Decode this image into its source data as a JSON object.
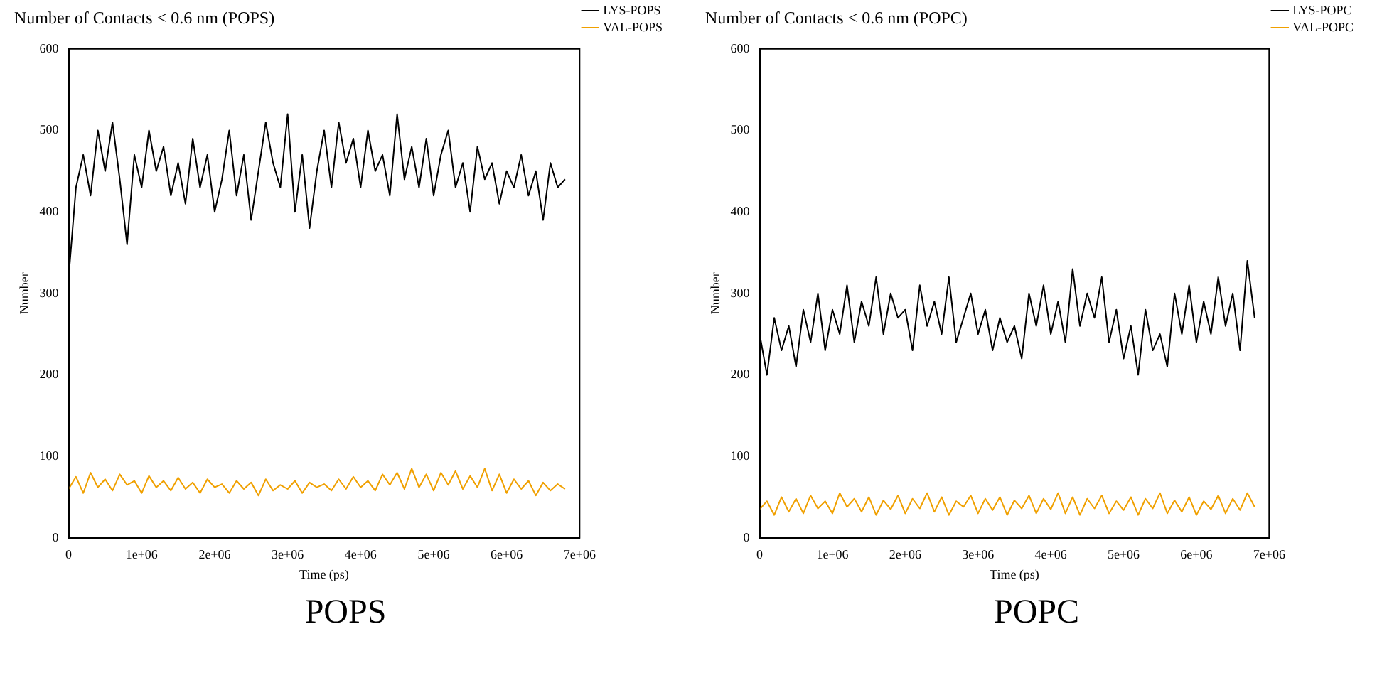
{
  "chart_data": [
    {
      "type": "line",
      "title": "Number of Contacts < 0.6 nm (POPS)",
      "xlabel": "Time (ps)",
      "ylabel": "Number",
      "annotations": [
        "POPS"
      ],
      "legend": "right",
      "grid": false,
      "marker": "none",
      "line_style": "solid",
      "x": [
        0,
        100000,
        200000,
        300000,
        400000,
        500000,
        600000,
        700000,
        800000,
        900000,
        1000000,
        1100000,
        1200000,
        1300000,
        1400000,
        1500000,
        1600000,
        1700000,
        1800000,
        1900000,
        2000000,
        2100000,
        2200000,
        2300000,
        2400000,
        2500000,
        2600000,
        2700000,
        2800000,
        2900000,
        3000000,
        3100000,
        3200000,
        3300000,
        3400000,
        3500000,
        3600000,
        3700000,
        3800000,
        3900000,
        4000000,
        4100000,
        4200000,
        4300000,
        4400000,
        4500000,
        4600000,
        4700000,
        4800000,
        4900000,
        5000000,
        5100000,
        5200000,
        5300000,
        5400000,
        5500000,
        5600000,
        5700000,
        5800000,
        5900000,
        6000000,
        6100000,
        6200000,
        6300000,
        6400000,
        6500000,
        6600000,
        6700000,
        6800000
      ],
      "xlim": [
        0,
        7000000
      ],
      "xticks": [
        0,
        {
          "value": 1000000,
          "label": "1e+06"
        },
        {
          "value": 2000000,
          "label": "2e+06"
        },
        {
          "value": 3000000,
          "label": "3e+06"
        },
        {
          "value": 4000000,
          "label": "4e+06"
        },
        {
          "value": 5000000,
          "label": "5e+06"
        },
        {
          "value": 6000000,
          "label": "6e+06"
        },
        {
          "value": 7000000,
          "label": "7e+06"
        }
      ],
      "ylim": [
        0,
        600
      ],
      "yticks": [
        0,
        100,
        200,
        300,
        400,
        500,
        600
      ],
      "series": [
        {
          "name": "LYS-POPS",
          "color": "#000000",
          "values": [
            320,
            430,
            470,
            420,
            500,
            450,
            510,
            440,
            360,
            470,
            430,
            500,
            450,
            480,
            420,
            460,
            410,
            490,
            430,
            470,
            400,
            440,
            500,
            420,
            470,
            390,
            450,
            510,
            460,
            430,
            520,
            400,
            470,
            380,
            450,
            500,
            430,
            510,
            460,
            490,
            430,
            500,
            450,
            470,
            420,
            520,
            440,
            480,
            430,
            490,
            420,
            470,
            500,
            430,
            460,
            400,
            480,
            440,
            460,
            410,
            450,
            430,
            470,
            420,
            450,
            390,
            460,
            430,
            440
          ]
        },
        {
          "name": "VAL-POPS",
          "color": "#f0a000",
          "values": [
            60,
            75,
            55,
            80,
            62,
            72,
            58,
            78,
            65,
            70,
            55,
            76,
            62,
            70,
            58,
            74,
            60,
            68,
            55,
            72,
            62,
            66,
            55,
            70,
            60,
            68,
            52,
            72,
            58,
            65,
            60,
            70,
            55,
            68,
            62,
            66,
            58,
            72,
            60,
            75,
            62,
            70,
            58,
            78,
            65,
            80,
            60,
            85,
            62,
            78,
            58,
            80,
            65,
            82,
            60,
            76,
            62,
            85,
            58,
            78,
            55,
            72,
            60,
            70,
            52,
            68,
            58,
            66,
            60
          ]
        }
      ]
    },
    {
      "type": "line",
      "title": "Number of Contacts < 0.6 nm (POPC)",
      "xlabel": "Time (ps)",
      "ylabel": "Number",
      "annotations": [
        "POPC"
      ],
      "legend": "right",
      "grid": false,
      "marker": "none",
      "line_style": "solid",
      "x": [
        0,
        100000,
        200000,
        300000,
        400000,
        500000,
        600000,
        700000,
        800000,
        900000,
        1000000,
        1100000,
        1200000,
        1300000,
        1400000,
        1500000,
        1600000,
        1700000,
        1800000,
        1900000,
        2000000,
        2100000,
        2200000,
        2300000,
        2400000,
        2500000,
        2600000,
        2700000,
        2800000,
        2900000,
        3000000,
        3100000,
        3200000,
        3300000,
        3400000,
        3500000,
        3600000,
        3700000,
        3800000,
        3900000,
        4000000,
        4100000,
        4200000,
        4300000,
        4400000,
        4500000,
        4600000,
        4700000,
        4800000,
        4900000,
        5000000,
        5100000,
        5200000,
        5300000,
        5400000,
        5500000,
        5600000,
        5700000,
        5800000,
        5900000,
        6000000,
        6100000,
        6200000,
        6300000,
        6400000,
        6500000,
        6600000,
        6700000,
        6800000
      ],
      "xlim": [
        0,
        7000000
      ],
      "xticks": [
        0,
        {
          "value": 1000000,
          "label": "1e+06"
        },
        {
          "value": 2000000,
          "label": "2e+06"
        },
        {
          "value": 3000000,
          "label": "3e+06"
        },
        {
          "value": 4000000,
          "label": "4e+06"
        },
        {
          "value": 5000000,
          "label": "5e+06"
        },
        {
          "value": 6000000,
          "label": "6e+06"
        },
        {
          "value": 7000000,
          "label": "7e+06"
        }
      ],
      "ylim": [
        0,
        600
      ],
      "yticks": [
        0,
        100,
        200,
        300,
        400,
        500,
        600
      ],
      "series": [
        {
          "name": "LYS-POPC",
          "color": "#000000",
          "values": [
            250,
            200,
            270,
            230,
            260,
            210,
            280,
            240,
            300,
            230,
            280,
            250,
            310,
            240,
            290,
            260,
            320,
            250,
            300,
            270,
            280,
            230,
            310,
            260,
            290,
            250,
            320,
            240,
            270,
            300,
            250,
            280,
            230,
            270,
            240,
            260,
            220,
            300,
            260,
            310,
            250,
            290,
            240,
            330,
            260,
            300,
            270,
            320,
            240,
            280,
            220,
            260,
            200,
            280,
            230,
            250,
            210,
            300,
            250,
            310,
            240,
            290,
            250,
            320,
            260,
            300,
            230,
            340,
            270
          ]
        },
        {
          "name": "VAL-POPC",
          "color": "#f0a000",
          "values": [
            35,
            45,
            28,
            50,
            32,
            48,
            30,
            52,
            36,
            45,
            30,
            55,
            38,
            48,
            32,
            50,
            28,
            46,
            35,
            52,
            30,
            48,
            36,
            55,
            32,
            50,
            28,
            45,
            38,
            52,
            30,
            48,
            34,
            50,
            28,
            46,
            36,
            52,
            30,
            48,
            35,
            55,
            30,
            50,
            28,
            48,
            36,
            52,
            30,
            45,
            34,
            50,
            28,
            48,
            36,
            55,
            30,
            46,
            32,
            50,
            28,
            45,
            35,
            52,
            30,
            48,
            34,
            55,
            38
          ]
        }
      ]
    }
  ]
}
